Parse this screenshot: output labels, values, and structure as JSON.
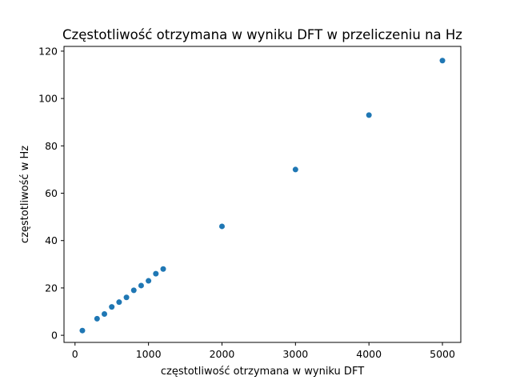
{
  "chart_data": {
    "type": "scatter",
    "title": "Częstotliwość otrzymana w wyniku DFT w przeliczeniu na Hz",
    "xlabel": "częstotliwość otrzymana w wyniku DFT",
    "ylabel": "częstotliwość w Hz",
    "xlim": [
      -150,
      5250
    ],
    "ylim": [
      -3,
      122
    ],
    "xticks": [
      0,
      1000,
      2000,
      3000,
      4000,
      5000
    ],
    "yticks": [
      0,
      20,
      40,
      60,
      80,
      100,
      120
    ],
    "grid": false,
    "point_color": "#1f77b4",
    "x": [
      100,
      300,
      400,
      500,
      600,
      700,
      800,
      900,
      1000,
      1100,
      1200,
      2000,
      3000,
      4000,
      5000
    ],
    "y": [
      2,
      7,
      9,
      12,
      14,
      16,
      19,
      21,
      23,
      26,
      28,
      46,
      70,
      93,
      116
    ]
  }
}
